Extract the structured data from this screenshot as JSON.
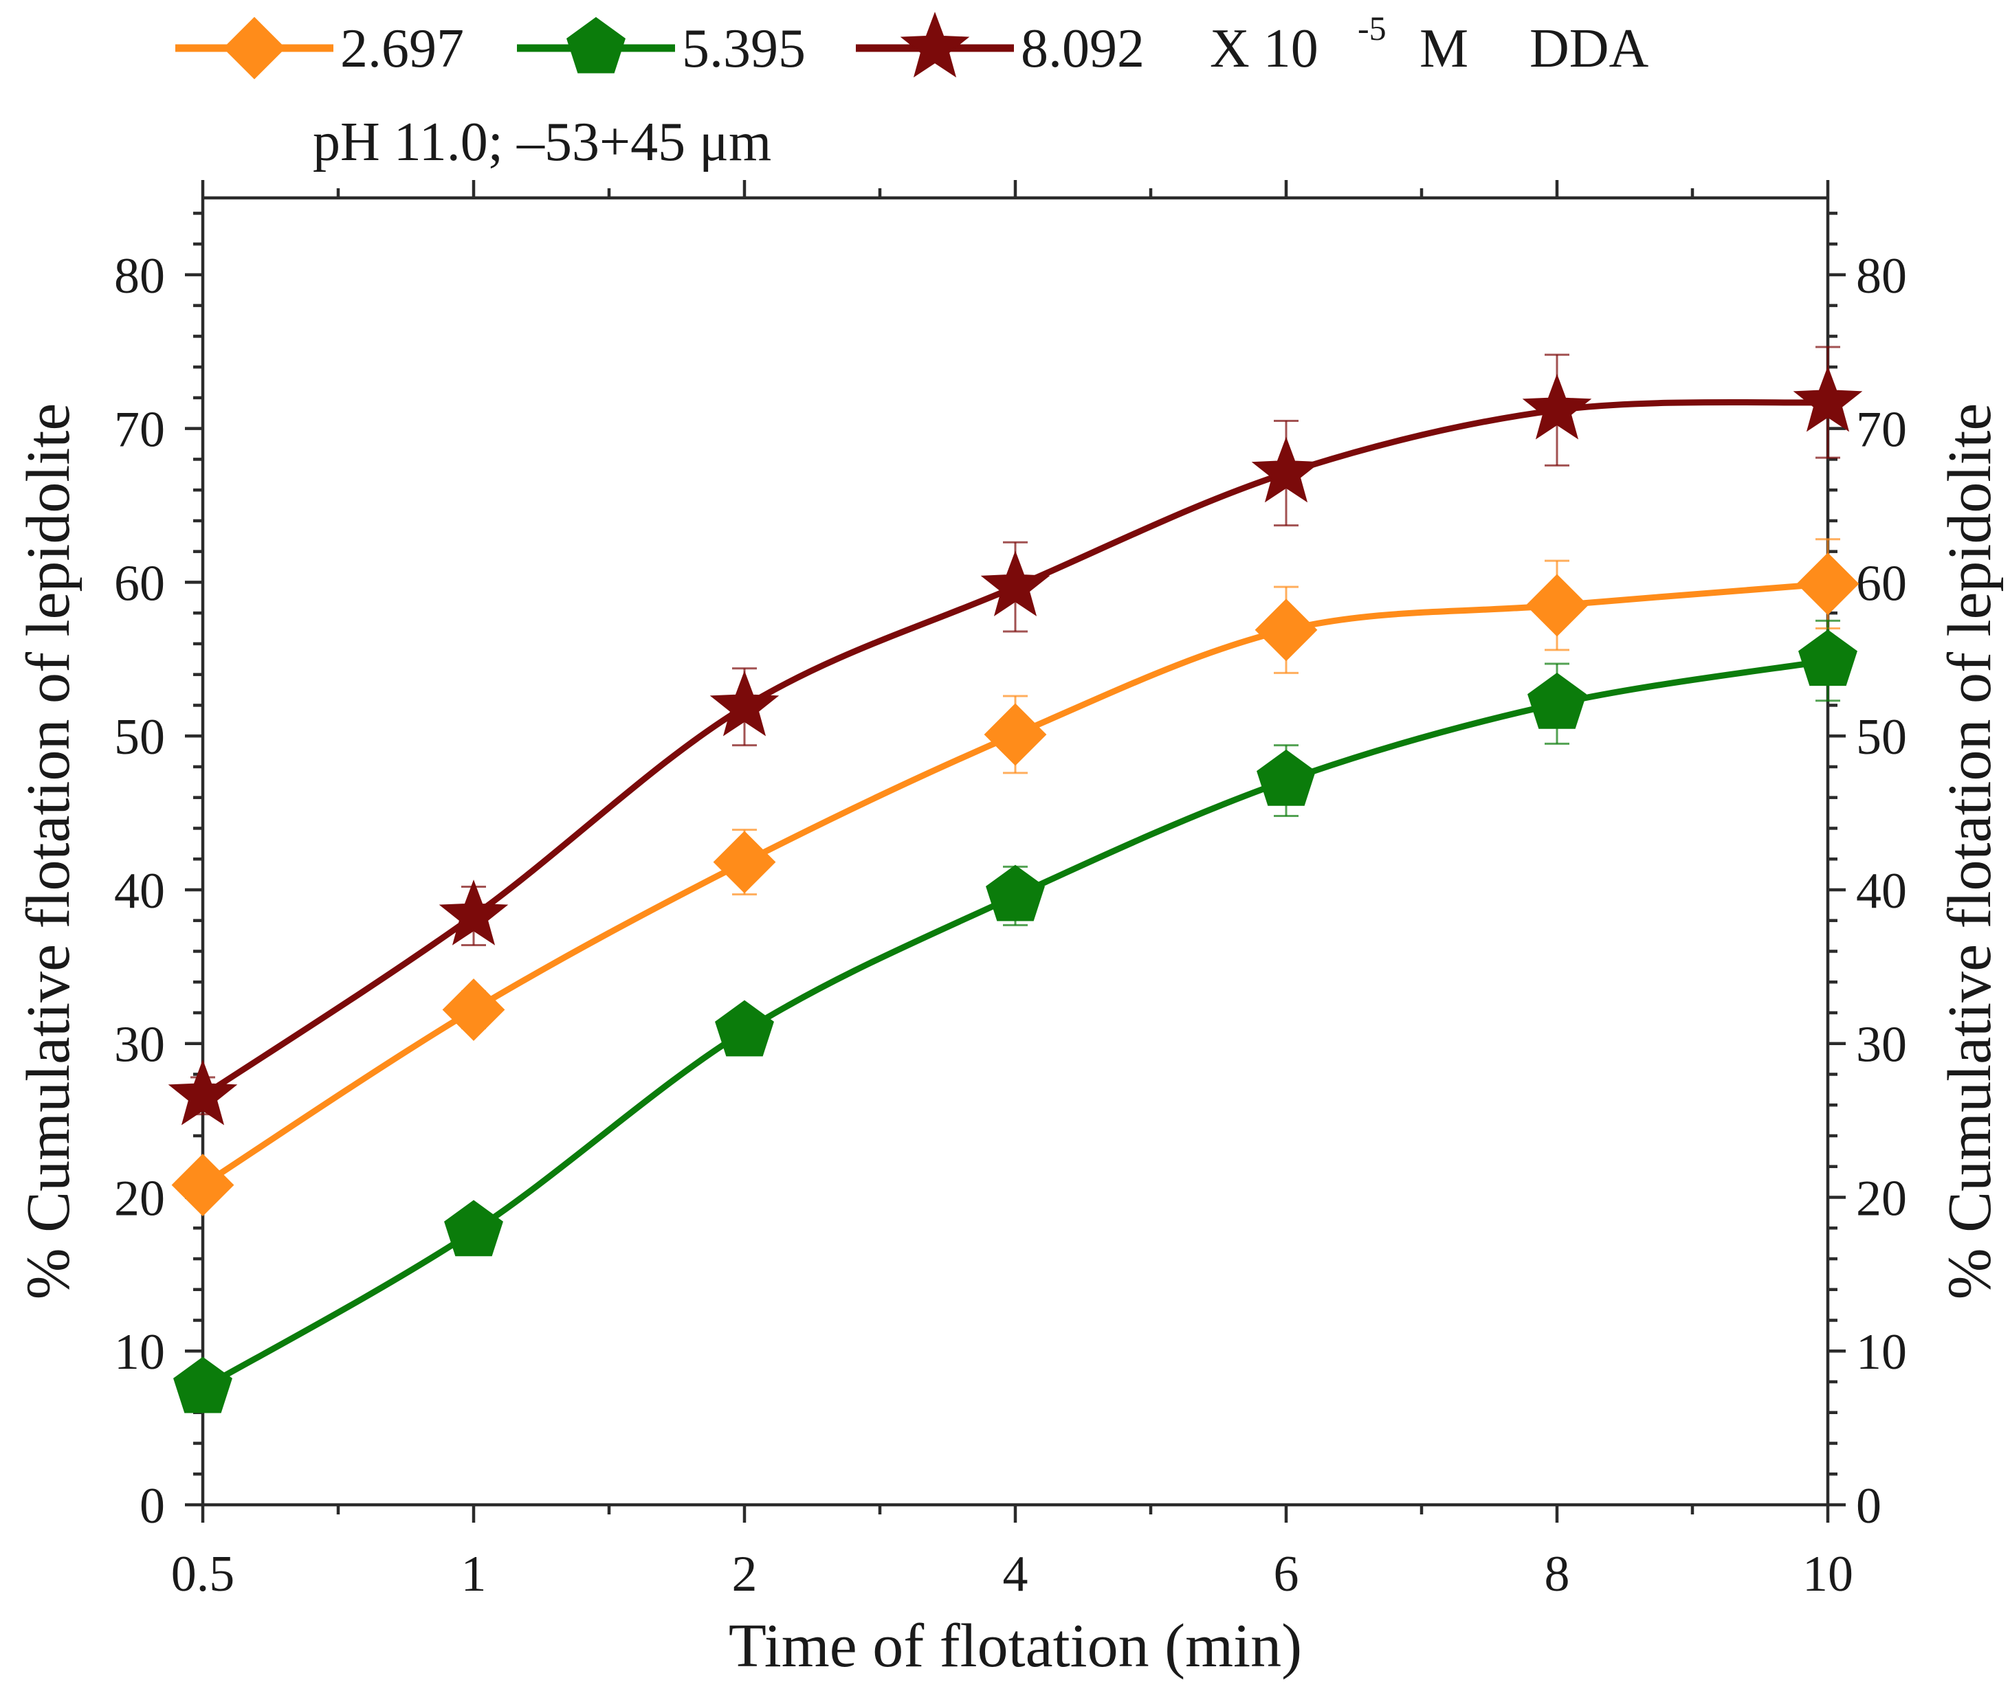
{
  "legend": {
    "prefix_unit": "X 10",
    "exponent": "-5",
    "unit": "M",
    "reagent": "DDA",
    "condition": "pH 11.0;  –53+45 μm"
  },
  "chart_data": {
    "type": "line",
    "title": "",
    "xlabel": "Time of flotation (min)",
    "ylabel": "% Cumulative flotation of lepidolite",
    "ylabel_right": "% Cumulative flotation of lepidolite",
    "categories": [
      "0.5",
      "1",
      "2",
      "4",
      "6",
      "8",
      "10"
    ],
    "ylim": [
      0,
      85
    ],
    "yticks": [
      0,
      10,
      20,
      30,
      40,
      50,
      60,
      70,
      80
    ],
    "grid": false,
    "legend_position": "top",
    "series": [
      {
        "name": "2.697",
        "color": "#ff8c1a",
        "marker": "diamond",
        "values": [
          20.8,
          32.2,
          41.8,
          50.1,
          56.9,
          58.5,
          59.9
        ],
        "errors": [
          0,
          1.2,
          2.1,
          2.5,
          2.8,
          2.9,
          2.9
        ]
      },
      {
        "name": "5.395",
        "color": "#0b7c0b",
        "marker": "pentagon",
        "values": [
          7.6,
          17.8,
          30.8,
          39.6,
          47.1,
          52.1,
          54.9
        ],
        "errors": [
          0,
          0,
          0,
          1.9,
          2.3,
          2.6,
          2.6
        ]
      },
      {
        "name": "8.092",
        "color": "#7b0a0a",
        "marker": "star",
        "values": [
          26.6,
          38.3,
          51.9,
          59.7,
          67.1,
          71.2,
          71.7
        ],
        "errors": [
          1.2,
          1.9,
          2.5,
          2.9,
          3.4,
          3.6,
          3.6
        ]
      }
    ]
  }
}
